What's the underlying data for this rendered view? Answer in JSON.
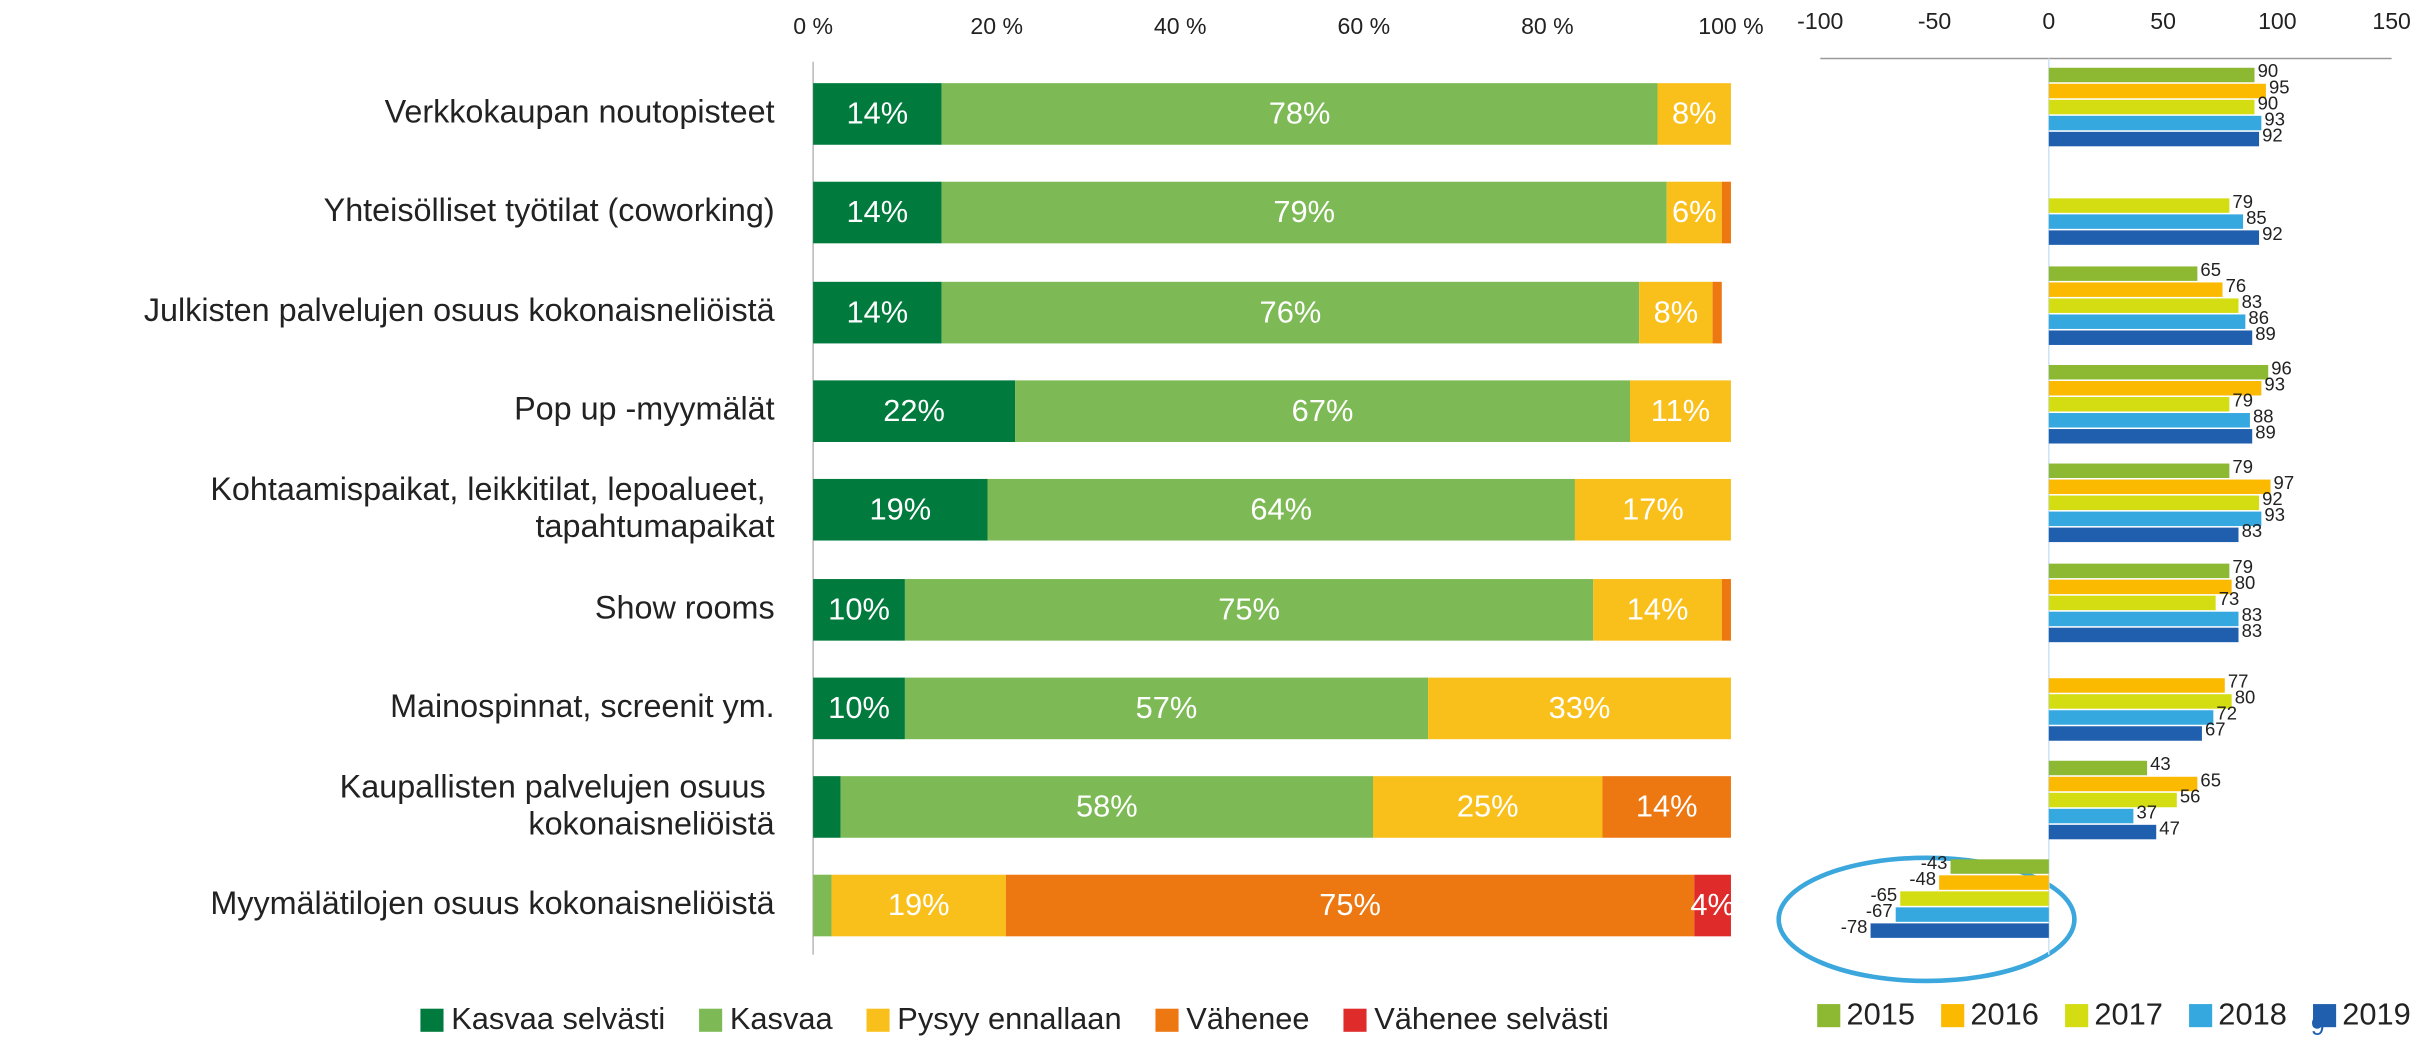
{
  "chart_data": [
    {
      "type": "stacked-barh",
      "categories": [
        "Verkkokaupan noutopisteet",
        "Yhteisölliset työtilat (coworking)",
        "Julkisten palvelujen osuus kokonaisneliöistä",
        "Pop up -myymälät",
        "Kohtaamispaikat, leikkitilat, lepoalueet, tapahtumapaikat",
        "Show rooms",
        "Mainospinnat, screenit ym.",
        "Kaupallisten palvelujen osuus kokonaisneliöistä",
        "Myymälätilojen osuus kokonaisneliöistä"
      ],
      "series": [
        {
          "name": "Kasvaa selvästi",
          "color": "#007a3d",
          "values": [
            14,
            14,
            14,
            22,
            19,
            10,
            10,
            3,
            0
          ],
          "value_labels": [
            "14%",
            "14%",
            "14%",
            "22%",
            "19%",
            "10%",
            "10%",
            null,
            null
          ]
        },
        {
          "name": "Kasvaa",
          "color": "#7dba56",
          "values": [
            78,
            79,
            76,
            67,
            64,
            75,
            57,
            58,
            2
          ],
          "value_labels": [
            "78%",
            "79%",
            "76%",
            "67%",
            "64%",
            "75%",
            "57%",
            "58%",
            null
          ]
        },
        {
          "name": "Pysyy ennallaan",
          "color": "#f9c01b",
          "values": [
            8,
            6,
            8,
            11,
            17,
            14,
            33,
            25,
            19
          ],
          "value_labels": [
            "8%",
            "6%",
            "8%",
            "11%",
            "17%",
            "14%",
            "33%",
            "25%",
            "19%"
          ]
        },
        {
          "name": "Vähenee",
          "color": "#ed7711",
          "values": [
            0,
            1,
            1,
            0,
            0,
            1,
            0,
            14,
            75
          ],
          "value_labels": [
            null,
            null,
            null,
            null,
            null,
            null,
            null,
            "14%",
            "75%"
          ]
        },
        {
          "name": "Vähenee selvästi",
          "color": "#e02b2b",
          "values": [
            0,
            0,
            0,
            0,
            0,
            0,
            0,
            0,
            4
          ],
          "value_labels": [
            null,
            null,
            null,
            null,
            null,
            null,
            null,
            null,
            "4%"
          ]
        }
      ],
      "xlim": [
        0,
        100
      ],
      "xticks": [
        {
          "value": 0,
          "label": "0 %"
        },
        {
          "value": 20,
          "label": "20 %"
        },
        {
          "value": 40,
          "label": "40 %"
        },
        {
          "value": 60,
          "label": "60 %"
        },
        {
          "value": 80,
          "label": "80 %"
        },
        {
          "value": 100,
          "label": "100 %"
        }
      ],
      "legend": "bottom"
    },
    {
      "type": "grouped-barh",
      "categories": [
        null,
        null,
        null,
        null,
        null,
        null,
        null,
        null,
        null
      ],
      "series": [
        {
          "name": "2015",
          "color": "#8cb832",
          "values": [
            90,
            null,
            65,
            96,
            79,
            79,
            null,
            43,
            -43
          ]
        },
        {
          "name": "2016",
          "color": "#fbb900",
          "values": [
            95,
            null,
            76,
            93,
            97,
            80,
            77,
            65,
            -48
          ]
        },
        {
          "name": "2017",
          "color": "#d4dc12",
          "values": [
            90,
            79,
            83,
            79,
            92,
            73,
            80,
            56,
            -65
          ]
        },
        {
          "name": "2018",
          "color": "#35a8e0",
          "values": [
            93,
            85,
            86,
            88,
            93,
            83,
            72,
            37,
            -67
          ]
        },
        {
          "name": "2019",
          "color": "#1f5fae",
          "values": [
            92,
            92,
            89,
            89,
            83,
            83,
            67,
            47,
            -78
          ]
        }
      ],
      "xlim": [
        -100,
        150
      ],
      "xticks": [
        -100,
        -50,
        0,
        50,
        100,
        150
      ],
      "legend": "bottom"
    }
  ],
  "page_number": "9"
}
